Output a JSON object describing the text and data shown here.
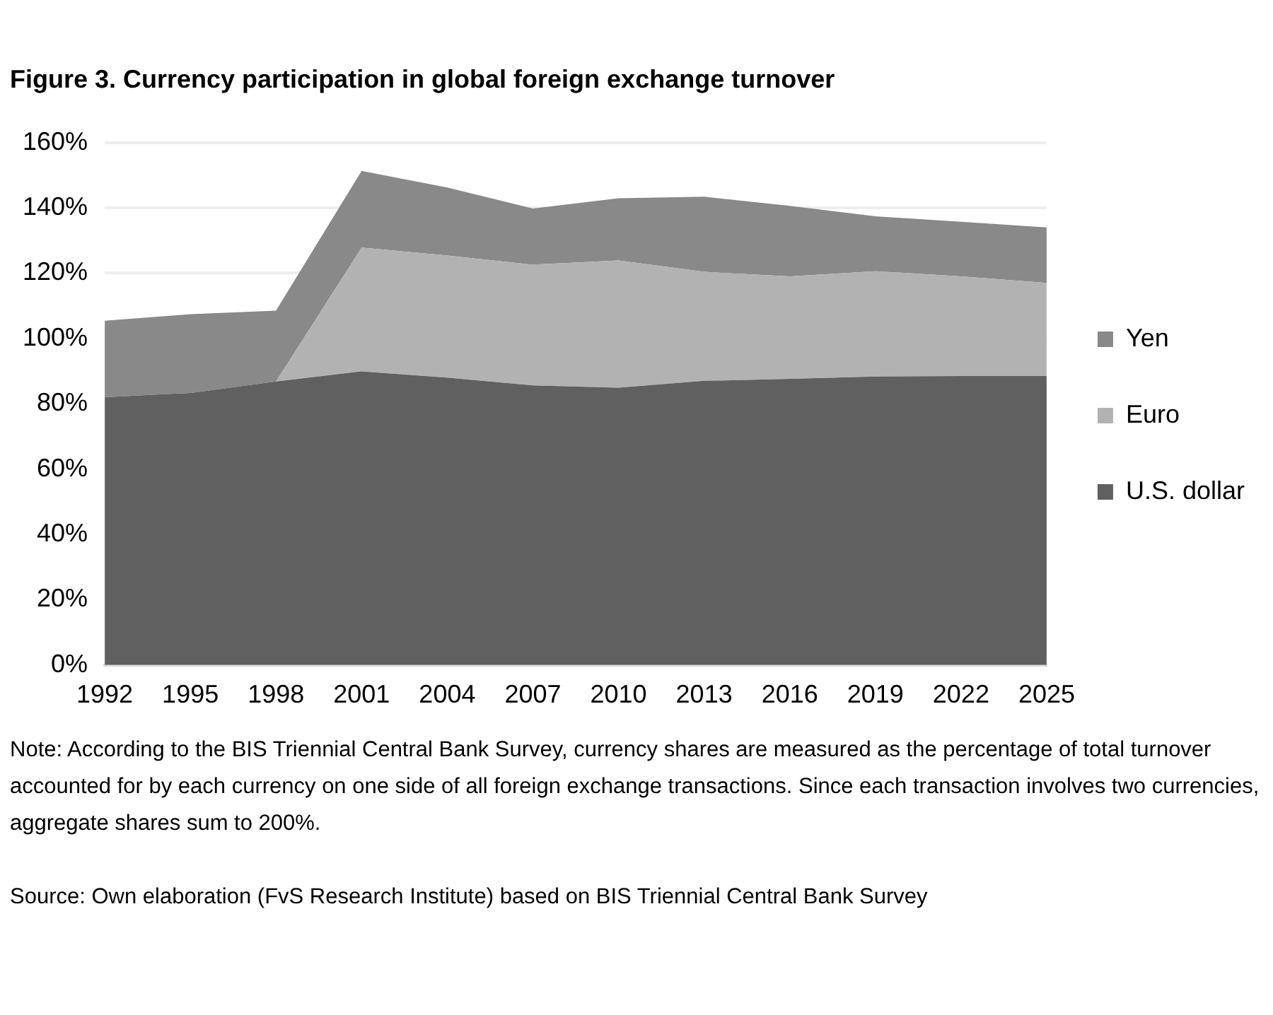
{
  "chart_data": {
    "type": "area",
    "title": "Figure 3. Currency participation in global foreign exchange turnover",
    "categories": [
      "1992",
      "1995",
      "1998",
      "2001",
      "2004",
      "2007",
      "2010",
      "2013",
      "2016",
      "2019",
      "2022",
      "2025"
    ],
    "stacked": true,
    "series": [
      {
        "name": "U.S. dollar",
        "color": "#606060",
        "values": [
          82,
          83.3,
          86.8,
          89.9,
          88,
          85.6,
          84.9,
          87,
          87.6,
          88.3,
          88.5,
          88.5
        ]
      },
      {
        "name": "Euro",
        "color": "#b2b2b2",
        "values": [
          0,
          0,
          0,
          37.9,
          37.4,
          37,
          39,
          33.4,
          31.4,
          32.3,
          30.5,
          28.5
        ]
      },
      {
        "name": "Yen",
        "color": "#898989",
        "values": [
          23.4,
          24.1,
          21.7,
          23.5,
          20.8,
          17.2,
          19,
          23,
          21.6,
          16.8,
          16.7,
          17
        ]
      }
    ],
    "ylim": [
      0,
      160
    ],
    "yticks": [
      {
        "value": 0,
        "label": "0%"
      },
      {
        "value": 20,
        "label": "20%"
      },
      {
        "value": 40,
        "label": "40%"
      },
      {
        "value": 60,
        "label": "60%"
      },
      {
        "value": 80,
        "label": "80%"
      },
      {
        "value": 100,
        "label": "100%"
      },
      {
        "value": 120,
        "label": "120%"
      },
      {
        "value": 140,
        "label": "140%"
      },
      {
        "value": 160,
        "label": "160%"
      }
    ],
    "grid": "y",
    "legend": "right",
    "annotations": [
      "Note: According to the BIS Triennial Central Bank Survey, currency shares are measured as the percentage of total turnover accounted for by each currency on one side of all foreign exchange transactions. Since each transaction involves two currencies, aggregate shares sum to 200%.",
      "Source: Own elaboration (FvS Research Institute) based on BIS Triennial Central Bank Survey"
    ]
  }
}
